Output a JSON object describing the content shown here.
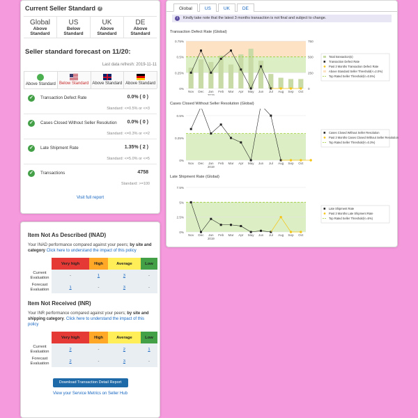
{
  "standard": {
    "title": "Current Seller Standard",
    "regions": [
      {
        "code": "Global",
        "status": "Above Standard"
      },
      {
        "code": "US",
        "status": "Below Standard"
      },
      {
        "code": "UK",
        "status": "Above Standard"
      },
      {
        "code": "DE",
        "status": "Above Standard"
      }
    ],
    "forecast_title": "Seller standard forecast on 11/20:",
    "last_refresh": "Last data refresh: 2019-11-11",
    "flag_tabs": [
      {
        "label": "Above Standard"
      },
      {
        "label": "Below Standard"
      },
      {
        "label": "Above Standard"
      },
      {
        "label": "Above Standard"
      }
    ],
    "metrics": [
      {
        "name": "Transaction Defect Rate",
        "value": "0.0%  ( 0 )",
        "standard": "Standard: <=0.5% or <=3"
      },
      {
        "name": "Cases Closed Without Seller Resolution",
        "value": "0.0%  ( 0 )",
        "standard": "Standard: <=0.3% or <=2"
      },
      {
        "name": "Late Shipment Rate",
        "value": "1.35%  ( 2 )",
        "standard": "Standard: <=5.0% or <=5"
      },
      {
        "name": "Transactions",
        "value": "4758",
        "standard": "Standard: >=100"
      }
    ],
    "visit_link": "Visit full report"
  },
  "inad": {
    "title": "Item Not As Described (INAD)",
    "desc_plain": "Your INAD performance compared against your peers; ",
    "desc_bold": "by site and category",
    "desc_link": "Click here to understand the impact of this policy",
    "headers": [
      "Very high",
      "High",
      "Average",
      "Low"
    ],
    "rows": [
      {
        "label": "Current Evaluation",
        "cells": [
          "-",
          "1",
          "3",
          "-"
        ]
      },
      {
        "label": "Forecast Evaluation",
        "cells": [
          "1",
          "-",
          "3",
          "-"
        ]
      }
    ]
  },
  "inr": {
    "title": "Item Not Received (INR)",
    "desc_plain": "Your INR performance compared against your peers; ",
    "desc_bold": "by site and shipping category",
    "desc_link": "Click here to understand the impact of this policy",
    "headers": [
      "Very high",
      "High",
      "Average",
      "Low"
    ],
    "rows": [
      {
        "label": "Current Evaluation",
        "cells": [
          "2",
          "-",
          "2",
          "1"
        ]
      },
      {
        "label": "Forecast Evaluation",
        "cells": [
          "2",
          "-",
          "3",
          "-"
        ]
      }
    ]
  },
  "download_button": "Download Transaction Detail Report",
  "hub_link": "View your Service Metrics on Seller Hub",
  "tabs": [
    "Global",
    "US",
    "UK",
    "DE"
  ],
  "notice": "Kindly take note that the latest 3 months transaction is not final and subject to change.",
  "colors": {
    "bar": "#c8dba6",
    "line": "#222222",
    "forecast": "#f5c518",
    "threshold": "#9acd32",
    "above_band": "#fde3c4",
    "top_band": "#dcefc4"
  },
  "chart_data": [
    {
      "type": "line",
      "title": "Transaction Defect Rate (Global)",
      "x": [
        "Nov",
        "Dec",
        "Jan",
        "Feb",
        "Mar",
        "Apr",
        "May",
        "Jun",
        "Jul",
        "Aug",
        "Sep",
        "Oct"
      ],
      "year_label": "2019",
      "y_ticks": [
        "0%",
        "0.25%",
        "0.5%",
        "0.75%"
      ],
      "y2_ticks": [
        "0",
        "250",
        "500",
        "750"
      ],
      "ylim": [
        0,
        0.75
      ],
      "y2lim": [
        0,
        750
      ],
      "bars": [
        330,
        460,
        420,
        520,
        380,
        540,
        630,
        440,
        230,
        170,
        150,
        150
      ],
      "series_actual": [
        0.25,
        0.6,
        0.25,
        0.47,
        0.6,
        0.3,
        0.0,
        0.35,
        0.0
      ],
      "series_forecast": [
        0.0,
        0.0,
        0.0
      ],
      "above_band": [
        0.5,
        0.75
      ],
      "top_band": [
        0.25,
        0.5
      ],
      "threshold": 0.5,
      "legend": [
        "Total transaction(s)",
        "Transaction Defect Rate",
        "Past 3 Months Transaction Defect Rate",
        "Above Standard Seller Threshold(<=2.0%)",
        "Top Rated Seller Threshold(<=0.5%)"
      ]
    },
    {
      "type": "line",
      "title": "Cases Closed Without Seller Resolution (Global)",
      "x": [
        "Nov",
        "Dec",
        "Jan",
        "Feb",
        "Mar",
        "Apr",
        "May",
        "Jun",
        "Jul",
        "Aug",
        "Sep",
        "Oct"
      ],
      "year_label": "2019",
      "y_ticks": [
        "0%",
        "0.25%",
        "0.5%"
      ],
      "ylim": [
        0,
        0.5
      ],
      "series_actual": [
        0.35,
        0.6,
        0.3,
        0.4,
        0.25,
        0.2,
        0.0,
        0.62,
        0.5,
        0.0
      ],
      "series_forecast": [
        0.0,
        0.0,
        0.0
      ],
      "top_band": [
        0.0,
        0.3
      ],
      "threshold": 0.3,
      "legend": [
        "Cases Closed Without Seller Resolution",
        "Past 3 Months Cases Closed Without Seller Resolution",
        "Top Rated Seller Threshold(<=0.3%)"
      ]
    },
    {
      "type": "line",
      "title": "Late Shipment Rate (Global)",
      "x": [
        "Nov",
        "Dec",
        "Jan",
        "Feb",
        "Mar",
        "Apr",
        "May",
        "Jun",
        "Jul",
        "Aug",
        "Sep",
        "Oct"
      ],
      "year_label": "2019",
      "y_ticks": [
        "0%",
        "2.5%",
        "5%",
        "7.5%"
      ],
      "ylim": [
        0,
        7.5
      ],
      "series_actual": [
        5.0,
        0.0,
        2.2,
        1.2,
        1.2,
        1.0,
        0.0,
        0.2,
        0.0
      ],
      "series_forecast": [
        2.5,
        0.0,
        0.0
      ],
      "top_band": [
        0.0,
        5.0
      ],
      "threshold": 5.0,
      "legend": [
        "Late Shipment Rate",
        "Past 3 Months Late Shipment Rate",
        "Top Rated Seller Threshold(<=5%)"
      ]
    }
  ]
}
